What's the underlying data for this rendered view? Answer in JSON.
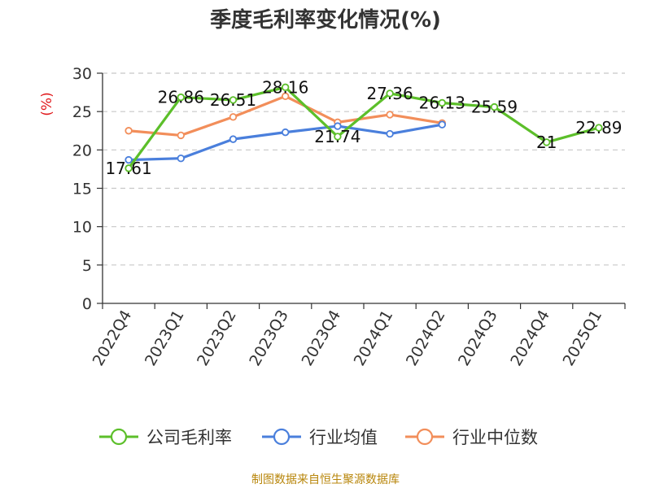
{
  "chart_data": {
    "type": "line",
    "title": "季度毛利率变化情况(%)",
    "ylabel": "(%)",
    "xlabel": "",
    "ylim": [
      0,
      30
    ],
    "yticks": [
      0,
      5,
      10,
      15,
      20,
      25,
      30
    ],
    "grid": true,
    "legend_position": "bottom",
    "categories": [
      "2022Q4",
      "2023Q1",
      "2023Q2",
      "2023Q3",
      "2023Q4",
      "2024Q1",
      "2024Q2",
      "2024Q3",
      "2024Q4",
      "2025Q1"
    ],
    "series": [
      {
        "name": "公司毛利率",
        "color": "#5cbf2a",
        "values": [
          17.61,
          26.86,
          26.51,
          28.16,
          21.74,
          27.36,
          26.13,
          25.59,
          21,
          22.89
        ],
        "labels": [
          "17.61",
          "26.86",
          "26.51",
          "28.16",
          "21.74",
          "27.36",
          "26.13",
          "25.59",
          "21",
          "22.89"
        ]
      },
      {
        "name": "行业均值",
        "color": "#4a7fdc",
        "values": [
          18.7,
          18.9,
          21.4,
          22.3,
          23.1,
          22.1,
          23.3,
          null,
          null,
          null
        ]
      },
      {
        "name": "行业中位数",
        "color": "#f28e5a",
        "values": [
          22.5,
          21.9,
          24.3,
          27.0,
          23.6,
          24.6,
          23.5,
          null,
          null,
          null
        ]
      }
    ]
  },
  "source_text": "制图数据来自恒生聚源数据库"
}
